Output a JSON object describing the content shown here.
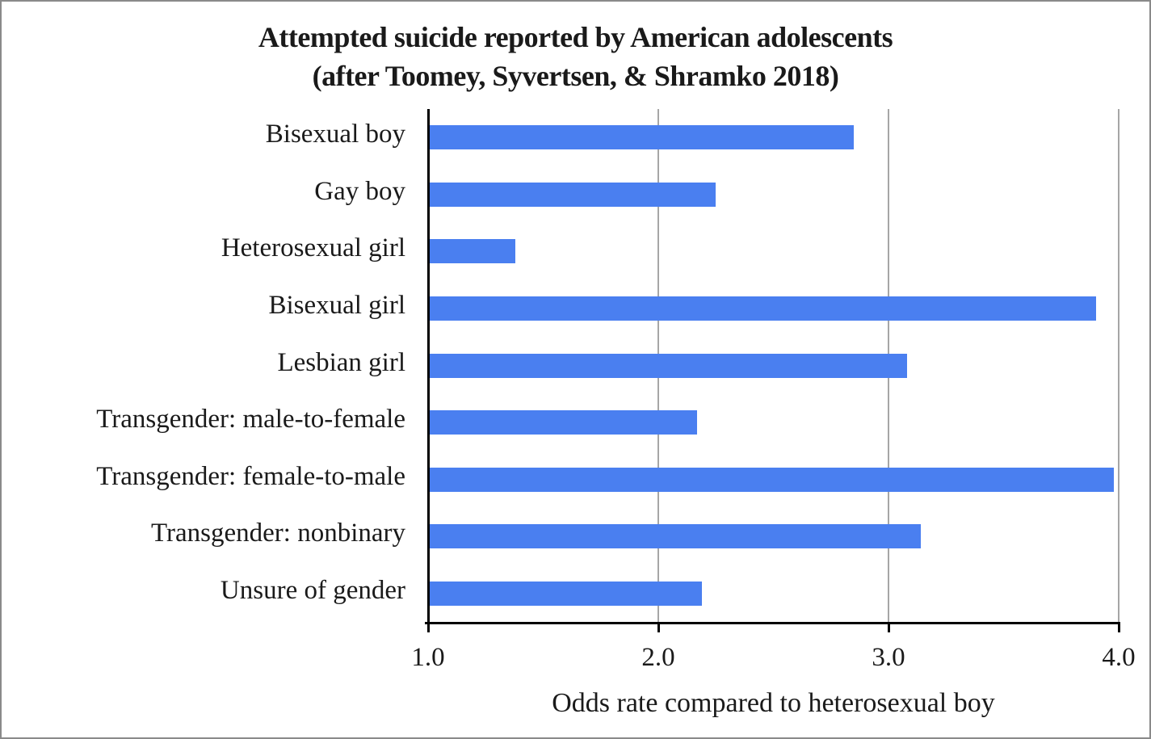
{
  "title": {
    "line1": "Attempted suicide reported by American adolescents",
    "line2": "(after Toomey, Syvertsen, & Shramko 2018)"
  },
  "chart_data": {
    "type": "bar",
    "orientation": "horizontal",
    "title": "Attempted suicide reported by American adolescents (after Toomey, Syvertsen, & Shramko 2018)",
    "categories": [
      "Bisexual boy",
      "Gay boy",
      "Heterosexual girl",
      "Bisexual girl",
      "Lesbian girl",
      "Transgender: male-to-female",
      "Transgender: female-to-male",
      "Transgender: nonbinary",
      "Unsure of gender"
    ],
    "values": [
      2.85,
      2.25,
      1.38,
      3.9,
      3.08,
      2.17,
      3.98,
      3.14,
      2.19
    ],
    "xlabel": "Odds rate compared to heterosexual boy",
    "ylabel": "",
    "xlim": [
      1.0,
      4.0
    ],
    "xticks": [
      "1.0",
      "2.0",
      "3.0",
      "4.0"
    ],
    "xtick_values": [
      1.0,
      2.0,
      3.0,
      4.0
    ],
    "grid": "vertical gridlines at 2.0, 3.0 and 4.0",
    "legend": "none",
    "bar_color": "#4a7ff0",
    "gridline_color": "#a6a6a6",
    "axis_color": "#000000"
  }
}
